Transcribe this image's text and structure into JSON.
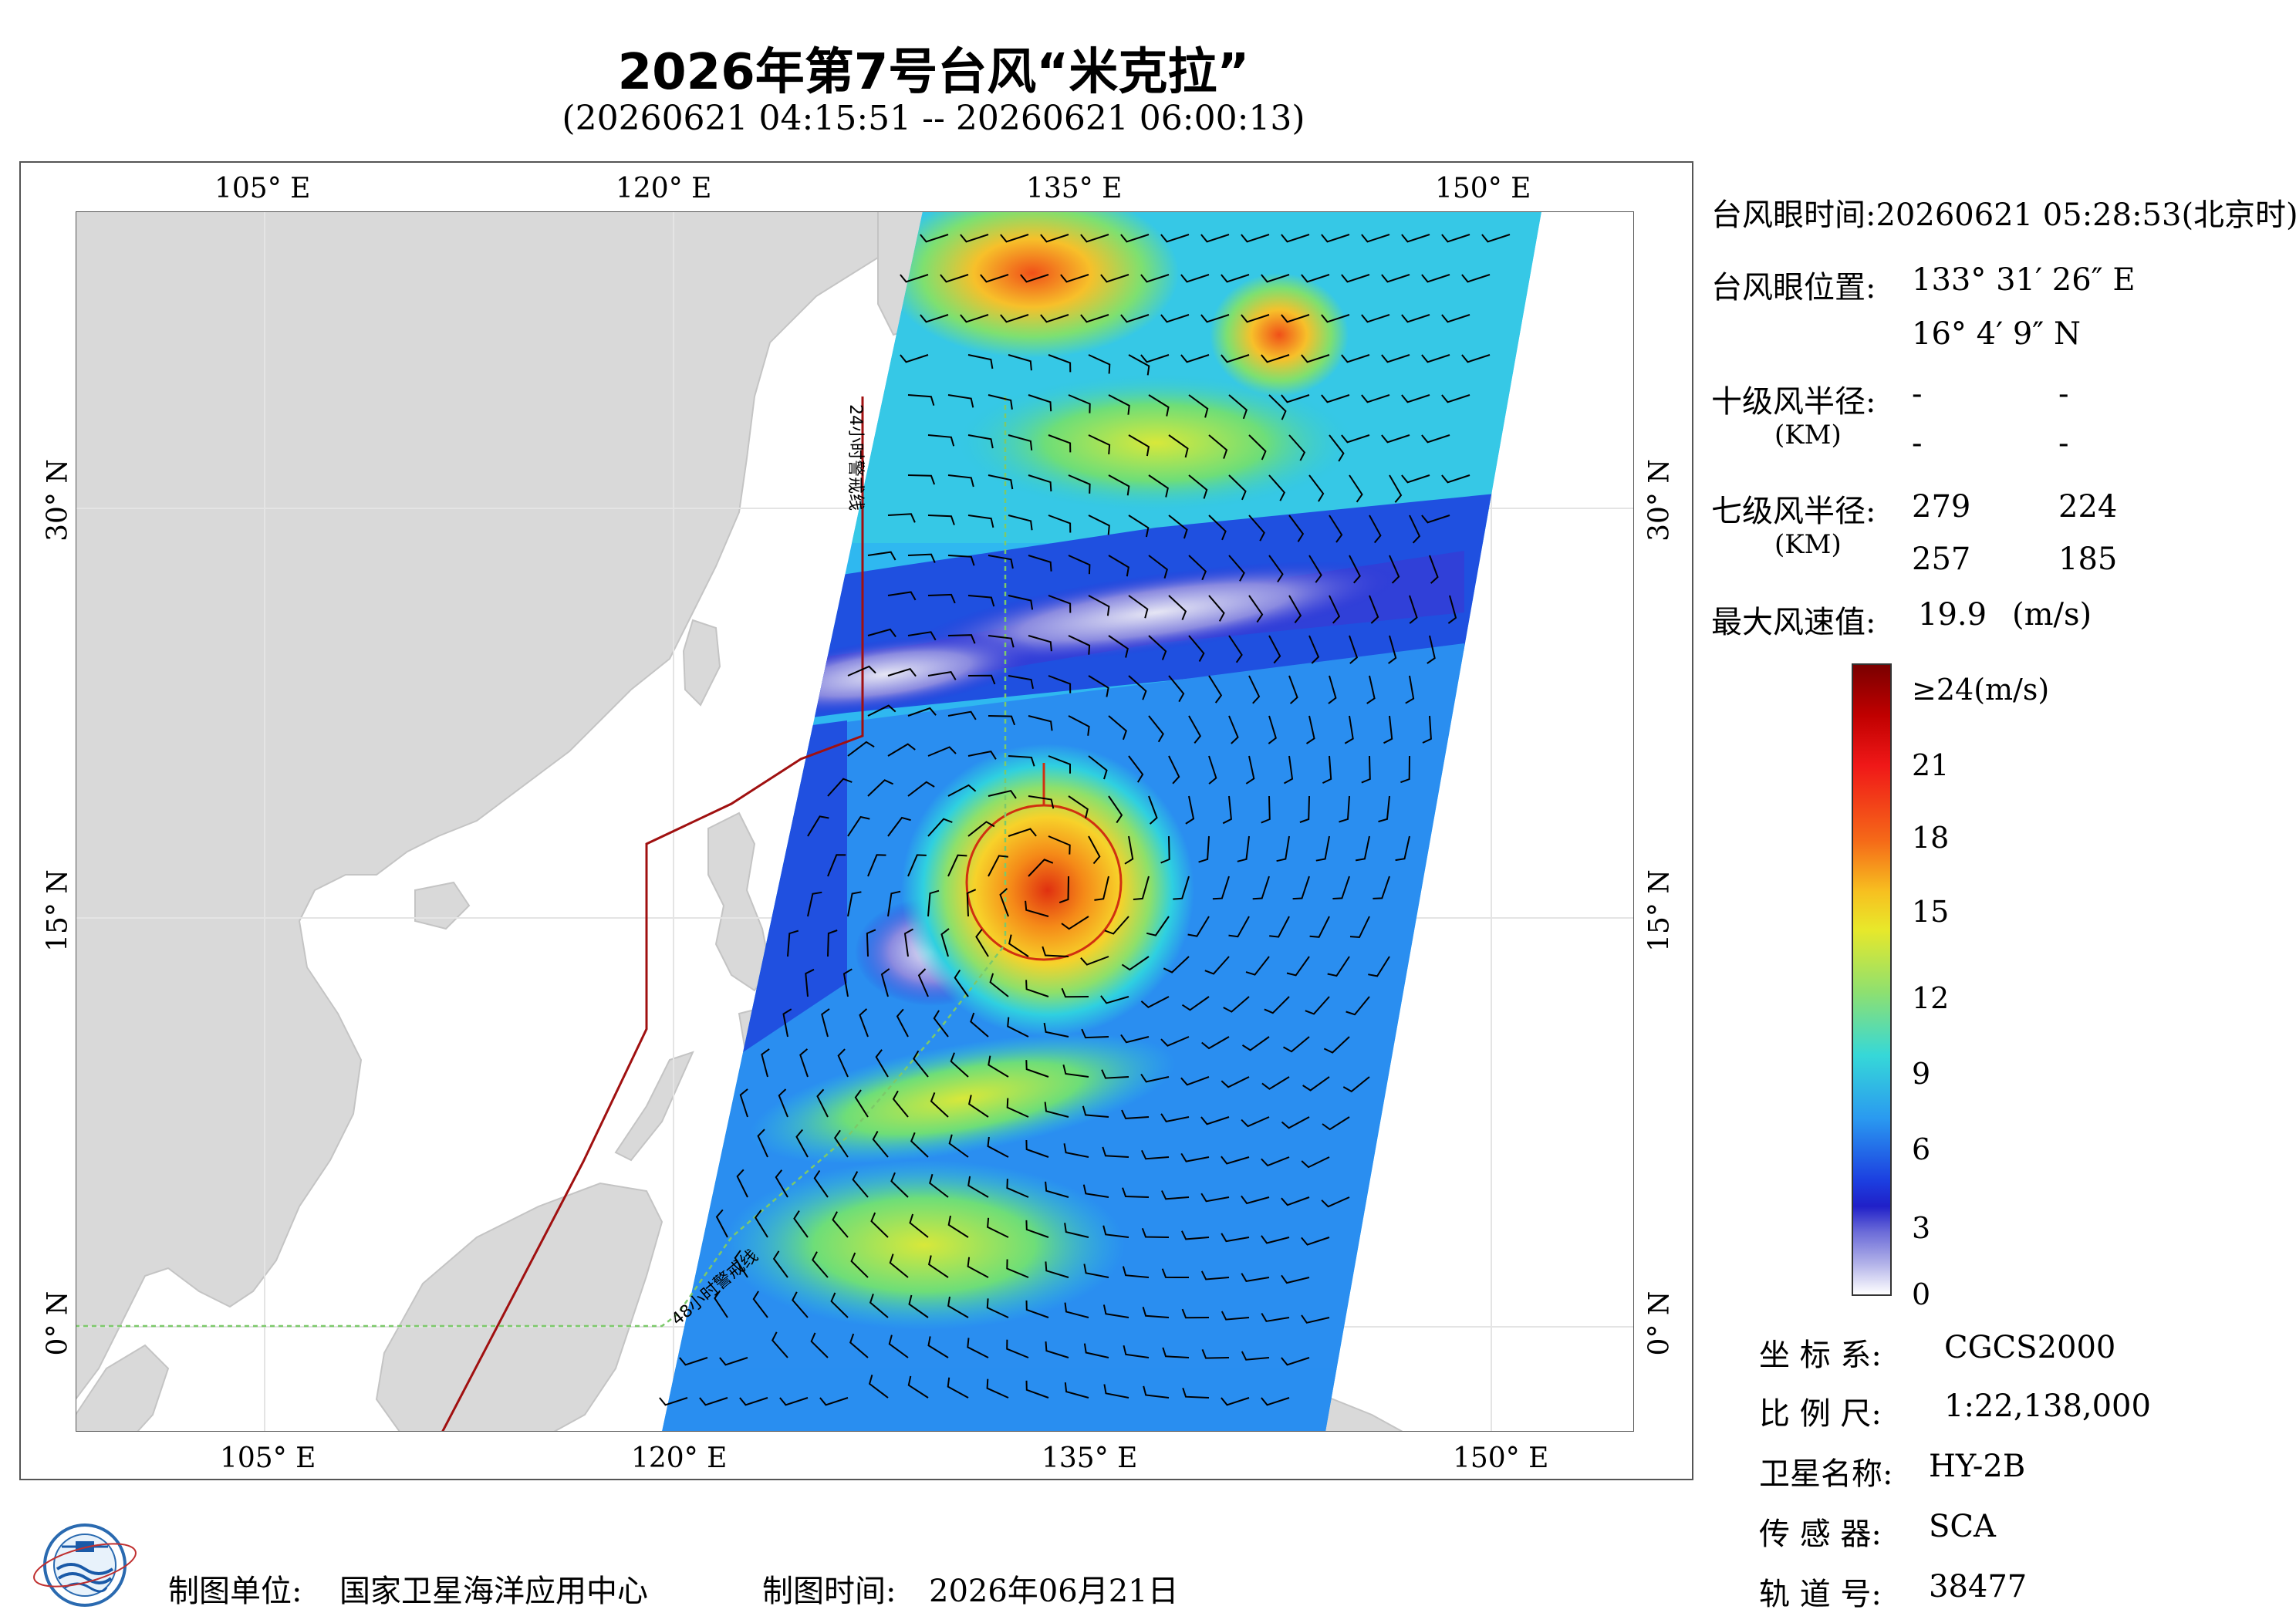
{
  "title": "2026年第7号台风“米克拉”",
  "time_range": "(20260621 04:15:51 -- 20260621 06:00:13)",
  "map": {
    "lon_labels": [
      "105° E",
      "120° E",
      "135° E",
      "150° E"
    ],
    "lat_labels": [
      "30° N",
      "15° N",
      "0° N"
    ],
    "line_labels": [
      "24小时警戒线",
      "48小时警戒线"
    ],
    "colors": {
      "warning24": "#a01010",
      "warning48": "#7cc96a",
      "land": "#d9d9d9",
      "ocean": "#ffffff"
    }
  },
  "info": {
    "eye_time_label": "台风眼时间:",
    "eye_time_value": "20260621 05:28:53(北京时)",
    "eye_pos_label": "台风眼位置:",
    "eye_lon": "133° 31′ 26″ E",
    "eye_lat": "16° 4′ 9″ N",
    "r10_label": "十级风半径:",
    "r10_unit": "(KM)",
    "r10_values": [
      "-",
      "-",
      "-",
      "-"
    ],
    "r7_label": "七级风半径:",
    "r7_unit": "(KM)",
    "r7_values": [
      "279",
      "224",
      "257",
      "185"
    ],
    "max_wind_label": "最大风速值:",
    "max_wind_value": "19.9",
    "max_wind_unit": "(m/s)"
  },
  "colorbar": {
    "ticks": [
      "≥24(m/s)",
      "21",
      "18",
      "15",
      "12",
      "9",
      "6",
      "3",
      "0"
    ],
    "tick_values": [
      24,
      21,
      18,
      15,
      12,
      9,
      6,
      3,
      0
    ]
  },
  "meta": {
    "crs_label": "坐 标 系:",
    "crs_value": "CGCS2000",
    "scale_label": "比 例 尺:",
    "scale_value": "1:22,138,000",
    "satellite_label": "卫星名称:",
    "satellite_value": "HY-2B",
    "sensor_label": "传 感 器:",
    "sensor_value": "SCA",
    "orbit_label": "轨 道 号:",
    "orbit_value": "38477"
  },
  "footer": {
    "producer_label": "制图单位:",
    "producer_value": "国家卫星海洋应用中心",
    "date_label": "制图时间:",
    "date_value": "2026年06月21日"
  }
}
